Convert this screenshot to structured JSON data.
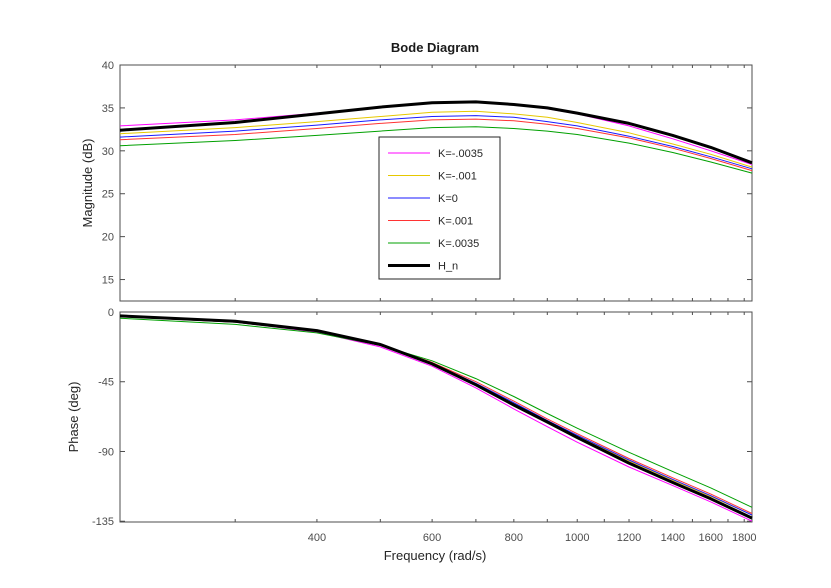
{
  "chart_data": {
    "type": "line",
    "title": "Bode Diagram",
    "xlabel": "Frequency  (rad/s)",
    "x_scale": "log",
    "xlim": [
      200,
      1850
    ],
    "xticks": [
      400,
      600,
      800,
      1000,
      1200,
      1400,
      1600,
      1800
    ],
    "grid": false,
    "legend_position": "center",
    "x": [
      200,
      300,
      400,
      500,
      600,
      700,
      800,
      900,
      1000,
      1200,
      1400,
      1600,
      1850
    ],
    "panels": [
      {
        "name": "magnitude",
        "ylabel": "Magnitude (dB)",
        "ylim": [
          12.5,
          40
        ],
        "yticks": [
          15,
          20,
          25,
          30,
          35,
          40
        ]
      },
      {
        "name": "phase",
        "ylabel": "Phase (deg)",
        "ylim": [
          -135.5,
          0
        ],
        "yticks": [
          0,
          -45,
          -90,
          -135
        ]
      }
    ],
    "series": [
      {
        "name": "K=-.0035",
        "color": "#ff00ff",
        "width": 1,
        "magnitude": [
          32.9,
          33.6,
          34.4,
          35.1,
          35.6,
          35.7,
          35.4,
          34.9,
          34.3,
          32.9,
          31.4,
          30.0,
          28.4
        ],
        "phase": [
          -3.0,
          -6.5,
          -13.0,
          -22.5,
          -35.0,
          -49.0,
          -62.5,
          -74.0,
          -84.0,
          -100.0,
          -112.0,
          -122.5,
          -135.0
        ]
      },
      {
        "name": "K=-.001",
        "color": "#e6c800",
        "width": 1,
        "magnitude": [
          32.0,
          32.7,
          33.4,
          34.0,
          34.5,
          34.6,
          34.3,
          33.9,
          33.3,
          32.1,
          30.8,
          29.6,
          28.1
        ],
        "phase": [
          -3.0,
          -6.5,
          -12.5,
          -21.5,
          -33.5,
          -46.5,
          -59.0,
          -70.5,
          -80.0,
          -96.0,
          -108.5,
          -119.0,
          -131.0
        ]
      },
      {
        "name": "K=0",
        "color": "#1a1aff",
        "width": 1,
        "magnitude": [
          31.6,
          32.3,
          33.0,
          33.6,
          34.0,
          34.1,
          33.9,
          33.4,
          32.9,
          31.7,
          30.5,
          29.3,
          27.9
        ],
        "phase": [
          -3.0,
          -6.5,
          -12.5,
          -21.5,
          -33.0,
          -46.0,
          -58.5,
          -70.0,
          -79.5,
          -95.5,
          -108.0,
          -118.5,
          -131.0
        ]
      },
      {
        "name": "K=.001",
        "color": "#ff3333",
        "width": 1,
        "magnitude": [
          31.3,
          31.9,
          32.6,
          33.2,
          33.6,
          33.7,
          33.5,
          33.1,
          32.6,
          31.5,
          30.3,
          29.1,
          27.7
        ],
        "phase": [
          -3.0,
          -6.5,
          -12.5,
          -21.0,
          -32.5,
          -45.0,
          -57.5,
          -69.0,
          -78.5,
          -94.5,
          -107.0,
          -117.5,
          -130.0
        ]
      },
      {
        "name": "K=.0035",
        "color": "#00a000",
        "width": 1,
        "magnitude": [
          30.6,
          31.2,
          31.8,
          32.3,
          32.7,
          32.8,
          32.6,
          32.3,
          31.9,
          30.9,
          29.8,
          28.7,
          27.4
        ],
        "phase": [
          -4.0,
          -8.0,
          -13.5,
          -21.5,
          -31.5,
          -43.0,
          -54.5,
          -65.5,
          -75.0,
          -90.5,
          -103.0,
          -113.5,
          -126.0
        ]
      },
      {
        "name": "H_n",
        "color": "#000000",
        "width": 3,
        "magnitude": [
          32.4,
          33.3,
          34.3,
          35.1,
          35.6,
          35.7,
          35.4,
          35.0,
          34.4,
          33.2,
          31.8,
          30.4,
          28.6
        ],
        "phase": [
          -2.5,
          -6.0,
          -12.0,
          -21.0,
          -33.5,
          -47.0,
          -60.0,
          -71.0,
          -81.0,
          -97.5,
          -110.0,
          -120.5,
          -133.0
        ]
      }
    ]
  }
}
